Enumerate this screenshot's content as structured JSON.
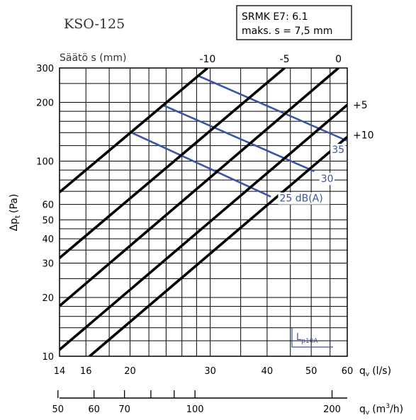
{
  "chart_data": {
    "type": "line",
    "title": "KSO-125",
    "info_box": [
      "SRMK E7: 6.1",
      "maks. s = 7,5 mm"
    ],
    "top_axis_label": "Säätö s (mm)",
    "xlabel": "q",
    "xlabel_sub": "v",
    "xlabel_unit": "(l/s)",
    "x2label": "q",
    "x2label_sub": "v",
    "x2label_unit": "(m",
    "x2label_sup": "3",
    "x2label_tail": "/h)",
    "ylabel": "Δp",
    "ylabel_sub": "t",
    "ylabel_unit": "(Pa)",
    "xlim": [
      14,
      60
    ],
    "ylim": [
      10,
      300
    ],
    "x_scale": "log",
    "y_scale": "log",
    "grid": true,
    "x_ticks": [
      {
        "v": 14,
        "label": "14"
      },
      {
        "v": 16,
        "label": "16"
      },
      {
        "v": 20,
        "label": "20"
      },
      {
        "v": 30,
        "label": "30"
      },
      {
        "v": 40,
        "label": "40"
      },
      {
        "v": 50,
        "label": "50"
      },
      {
        "v": 60,
        "label": "60"
      }
    ],
    "x_grid": [
      14,
      16,
      18,
      20,
      22,
      24,
      26,
      28,
      30,
      35,
      40,
      45,
      50,
      55,
      60
    ],
    "y_ticks": [
      {
        "v": 10,
        "label": "10"
      },
      {
        "v": 20,
        "label": "20"
      },
      {
        "v": 30,
        "label": "30"
      },
      {
        "v": 40,
        "label": "40"
      },
      {
        "v": 50,
        "label": "50"
      },
      {
        "v": 60,
        "label": "60"
      },
      {
        "v": 100,
        "label": "100"
      },
      {
        "v": 200,
        "label": "200"
      },
      {
        "v": 300,
        "label": "300"
      }
    ],
    "y_grid": [
      10,
      12,
      14,
      16,
      18,
      20,
      25,
      30,
      35,
      40,
      45,
      50,
      60,
      70,
      80,
      90,
      100,
      120,
      140,
      160,
      180,
      200,
      250,
      300
    ],
    "m3h_ticks": [
      {
        "v": 50,
        "label": "50"
      },
      {
        "v": 60,
        "label": "60"
      },
      {
        "v": 70,
        "label": "70"
      },
      {
        "v": 80,
        "label": ""
      },
      {
        "v": 90,
        "label": ""
      },
      {
        "v": 100,
        "label": "100"
      },
      {
        "v": 200,
        "label": "200"
      }
    ],
    "setting_series": [
      {
        "name": "-10",
        "points": [
          [
            14,
            69.3
          ],
          [
            29.6,
            300
          ]
        ]
      },
      {
        "name": "-5",
        "points": [
          [
            14,
            31.9
          ],
          [
            43.7,
            300
          ]
        ]
      },
      {
        "name": "0",
        "points": [
          [
            14,
            18.1
          ],
          [
            57.4,
            300
          ]
        ]
      },
      {
        "name": "+5",
        "points": [
          [
            14,
            10.8
          ],
          [
            60,
            194
          ]
        ]
      },
      {
        "name": "+10",
        "points": [
          [
            16.3,
            10.0
          ],
          [
            60,
            132.9
          ]
        ]
      }
    ],
    "noise_series": [
      {
        "name": "35",
        "points": [
          [
            28.5,
            271
          ],
          [
            60,
            127
          ]
        ]
      },
      {
        "name": "30",
        "points": [
          [
            23.8,
            192
          ],
          [
            50.6,
            89
          ]
        ]
      },
      {
        "name": "25 dB(A)",
        "points": [
          [
            20.0,
            141
          ],
          [
            40.6,
            66
          ]
        ]
      }
    ],
    "noise_symbol": {
      "main": "L",
      "sub": "p10A"
    }
  }
}
